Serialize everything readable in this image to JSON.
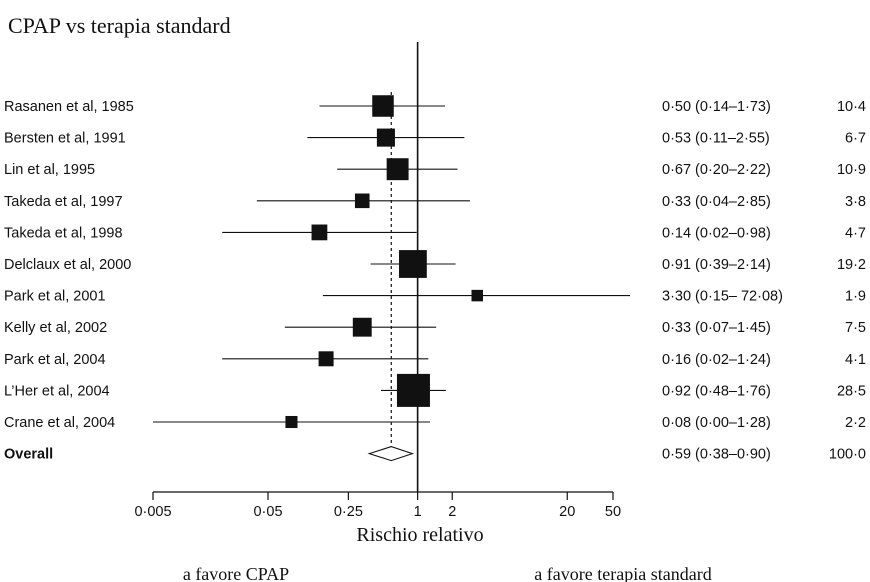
{
  "chart_data": {
    "type": "forest",
    "title": "CPAP vs terapia standard",
    "xlabel": "Rischio relativo",
    "x_scale": "log",
    "xlim": [
      0.005,
      50
    ],
    "x_ticks": [
      {
        "value": 0.005,
        "label": "0·005"
      },
      {
        "value": 0.05,
        "label": "0·05"
      },
      {
        "value": 0.25,
        "label": "0·25"
      },
      {
        "value": 1,
        "label": "1"
      },
      {
        "value": 2,
        "label": "2"
      },
      {
        "value": 20,
        "label": "20"
      },
      {
        "value": 50,
        "label": "50"
      }
    ],
    "reference_line": 1,
    "pooled_estimate_line": 0.59,
    "favors_left": "a favore CPAP",
    "favors_right": "a favore terapia standard",
    "studies": [
      {
        "name": "Rasanen et al, 1985",
        "rr": 0.5,
        "lo": 0.14,
        "hi": 1.73,
        "ci_text": "0·50 (0·14–1·73)",
        "weight": 10.4,
        "weight_text": "10·4"
      },
      {
        "name": "Bersten et al, 1991",
        "rr": 0.53,
        "lo": 0.11,
        "hi": 2.55,
        "ci_text": "0·53 (0·11–2·55)",
        "weight": 6.7,
        "weight_text": "6·7"
      },
      {
        "name": "Lin et al, 1995",
        "rr": 0.67,
        "lo": 0.2,
        "hi": 2.22,
        "ci_text": "0·67 (0·20–2·22)",
        "weight": 10.9,
        "weight_text": "10·9"
      },
      {
        "name": "Takeda et al, 1997",
        "rr": 0.33,
        "lo": 0.04,
        "hi": 2.85,
        "ci_text": "0·33 (0·04–2·85)",
        "weight": 3.8,
        "weight_text": "3·8"
      },
      {
        "name": "Takeda et al, 1998",
        "rr": 0.14,
        "lo": 0.02,
        "hi": 0.98,
        "ci_text": "0·14 (0·02–0·98)",
        "weight": 4.7,
        "weight_text": "4·7"
      },
      {
        "name": "Delclaux et al, 2000",
        "rr": 0.91,
        "lo": 0.39,
        "hi": 2.14,
        "ci_text": "0·91 (0·39–2·14)",
        "weight": 19.2,
        "weight_text": "19·2"
      },
      {
        "name": "Park et al, 2001",
        "rr": 3.3,
        "lo": 0.15,
        "hi": 72.08,
        "ci_text": "3·30 (0·15– 72·08)",
        "weight": 1.9,
        "weight_text": "1·9"
      },
      {
        "name": "Kelly et al, 2002",
        "rr": 0.33,
        "lo": 0.07,
        "hi": 1.45,
        "ci_text": "0·33 (0·07–1·45)",
        "weight": 7.5,
        "weight_text": "7·5"
      },
      {
        "name": "Park et al, 2004",
        "rr": 0.16,
        "lo": 0.02,
        "hi": 1.24,
        "ci_text": "0·16 (0·02–1·24)",
        "weight": 4.1,
        "weight_text": "4·1"
      },
      {
        "name": "L’Her et al, 2004",
        "rr": 0.92,
        "lo": 0.48,
        "hi": 1.76,
        "ci_text": "0·92 (0·48–1·76)",
        "weight": 28.5,
        "weight_text": "28·5"
      },
      {
        "name": "Crane et al, 2004",
        "rr": 0.08,
        "lo": 0.0,
        "hi": 1.28,
        "ci_text": "0·08 (0·00–1·28)",
        "weight": 2.2,
        "weight_text": "2·2"
      }
    ],
    "overall": {
      "name": "Overall",
      "rr": 0.59,
      "lo": 0.38,
      "hi": 0.9,
      "ci_text": "0·59 (0·38–0·90)",
      "weight": 100.0,
      "weight_text": "100·0"
    }
  }
}
